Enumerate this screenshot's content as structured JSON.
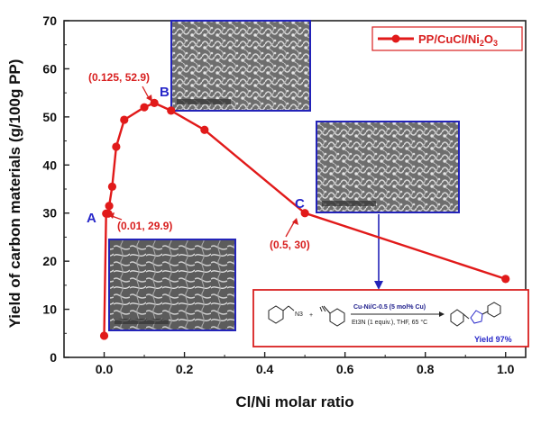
{
  "chart_data": {
    "type": "line",
    "xlabel": "Cl/Ni molar ratio",
    "ylabel": "Yield of carbon materials  (g/100g PP)",
    "xlim": [
      -0.1,
      1.05
    ],
    "ylim": [
      0,
      70
    ],
    "xticks": [
      0.0,
      0.2,
      0.4,
      0.6,
      0.8,
      1.0
    ],
    "xtick_labels": [
      "0.0",
      "0.2",
      "0.4",
      "0.6",
      "0.8",
      "1.0"
    ],
    "yticks": [
      0,
      10,
      20,
      30,
      40,
      50,
      60,
      70
    ],
    "ytick_labels": [
      "0",
      "10",
      "20",
      "30",
      "40",
      "50",
      "60",
      "70"
    ],
    "legend_position": "top-right",
    "series": [
      {
        "name_parts": [
          "PP/CuCl/Ni",
          "2",
          "O",
          "3"
        ],
        "color": "#e11a1a",
        "x": [
          0.0,
          0.005,
          0.01,
          0.0125,
          0.02,
          0.03,
          0.05,
          0.1,
          0.125,
          0.1667,
          0.25,
          0.5,
          1.0
        ],
        "y": [
          4.5,
          29.9,
          29.9,
          31.5,
          35.5,
          43.8,
          49.4,
          52.0,
          52.9,
          51.3,
          47.3,
          30.0,
          16.3
        ]
      }
    ],
    "annotations": {
      "label_a": "A",
      "label_b": "B",
      "label_c": "C",
      "coord_b": "(0.125, 52.9)",
      "coord_a": "(0.01, 29.9)",
      "coord_c": "(0.5, 30)"
    },
    "insets": [
      {
        "name": "sem-image-a"
      },
      {
        "name": "sem-image-b"
      },
      {
        "name": "sem-image-c"
      }
    ],
    "scheme": {
      "catalyst": "Cu-Ni/C-0.5 (5 mol% Cu)",
      "conditions": "Et3N (1 equiv.), THF, 65 °C",
      "azide": "N3",
      "plus": "+",
      "yield": "Yield 97%"
    },
    "colors": {
      "line": "#e11a1a",
      "annotation_blue": "#2727c9",
      "inset_border": "#2323b8",
      "scheme_border": "#d92020"
    }
  }
}
